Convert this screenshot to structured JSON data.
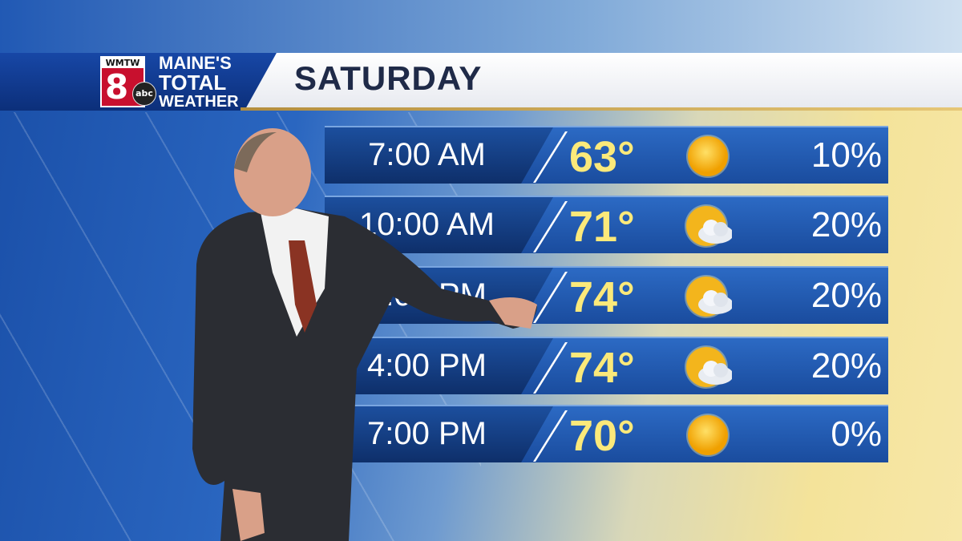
{
  "station": {
    "call_letters": "WMTW",
    "channel": "8",
    "network": "abc",
    "brand_lines": [
      "MAINE'S",
      "TOTAL",
      "WEATHER"
    ]
  },
  "header": {
    "title": "SATURDAY"
  },
  "colors": {
    "header_blue": "#1747a6",
    "temp_yellow": "#fbe97a",
    "row_blue": "#1a4c9e",
    "gold_rule": "#c9a85a"
  },
  "forecast": [
    {
      "time": "7:00 AM",
      "temp": "63°",
      "icon": "sun-icon",
      "precip": "10%"
    },
    {
      "time": "10:00 AM",
      "temp": "71°",
      "icon": "partly-cloudy-icon",
      "precip": "20%"
    },
    {
      "time": "1:00 PM",
      "temp": "74°",
      "icon": "partly-cloudy-icon",
      "precip": "20%"
    },
    {
      "time": "4:00 PM",
      "temp": "74°",
      "icon": "partly-cloudy-icon",
      "precip": "20%"
    },
    {
      "time": "7:00 PM",
      "temp": "70°",
      "icon": "sun-icon",
      "precip": "0%"
    }
  ]
}
